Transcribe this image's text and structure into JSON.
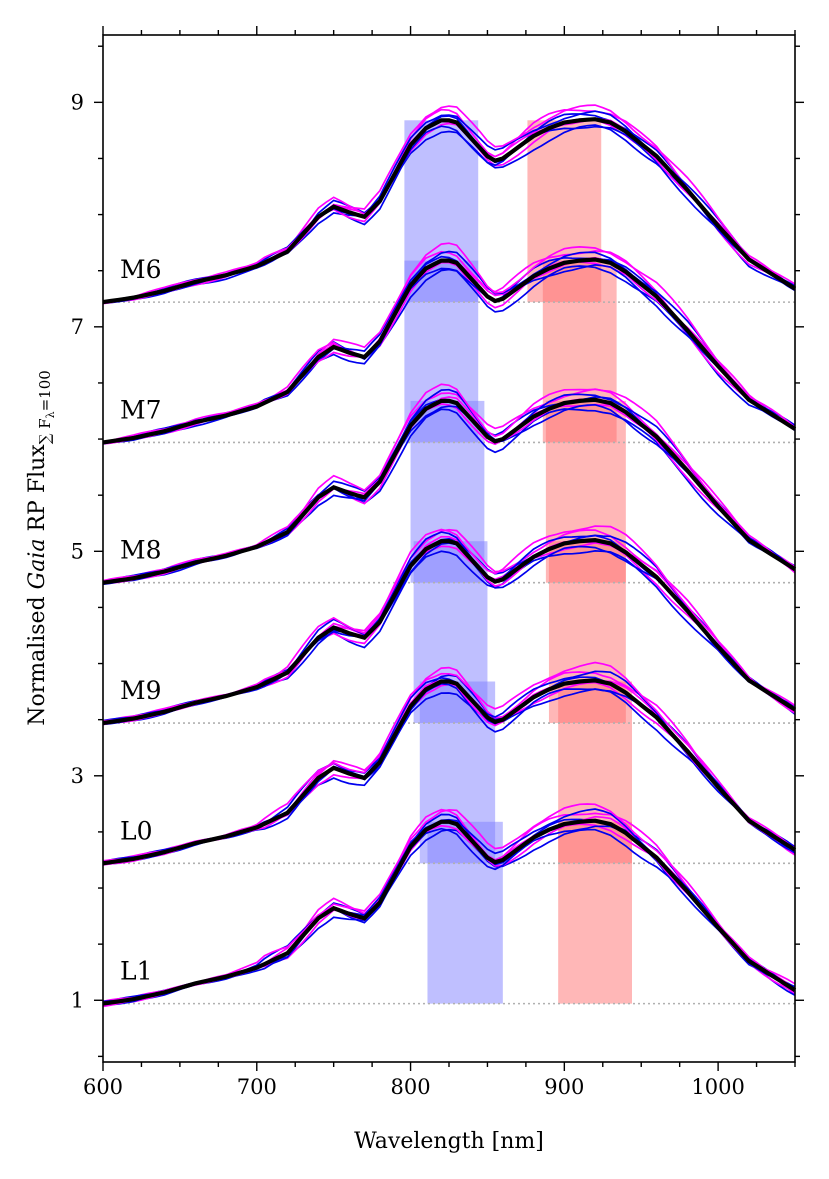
{
  "chart_data": {
    "type": "line",
    "xlabel": "Wavelength [nm]",
    "ylabel": "Normalised Gaia RP Flux",
    "ylabel_parts": {
      "pre": "Normalised ",
      "italic": "Gaia",
      "post": " RP Flux",
      "sub": "∑ F",
      "subsub": "λ",
      "subtail": "=100"
    },
    "xlim": [
      600,
      1050
    ],
    "ylim": [
      0.45,
      9.6
    ],
    "x_ticks": [
      600,
      700,
      800,
      900,
      1000
    ],
    "x_tick_labels": [
      "600",
      "700",
      "800",
      "900",
      "1000"
    ],
    "y_ticks": [
      1,
      3,
      5,
      7,
      9
    ],
    "y_tick_labels": [
      "1",
      "3",
      "5",
      "7",
      "9"
    ],
    "grid": false,
    "colors": {
      "individual_a": "#0000ee",
      "individual_b": "#ff00ff",
      "median": "#000000",
      "blue_band": "#8080ff",
      "red_band": "#ff7070",
      "baseline": "#b0b0b0"
    },
    "spectral_types": [
      {
        "label": "M6",
        "offset": 7.22,
        "blue_band": [
          796,
          844
        ],
        "red_band": [
          876,
          924
        ]
      },
      {
        "label": "M7",
        "offset": 5.97,
        "blue_band": [
          796,
          844
        ],
        "red_band": [
          886,
          934
        ]
      },
      {
        "label": "M8",
        "offset": 4.72,
        "blue_band": [
          800,
          848
        ],
        "red_band": [
          888,
          940
        ]
      },
      {
        "label": "M9",
        "offset": 3.47,
        "blue_band": [
          802,
          850
        ],
        "red_band": [
          890,
          940
        ]
      },
      {
        "label": "L0",
        "offset": 2.22,
        "blue_band": [
          806,
          855
        ],
        "red_band": [
          896,
          944
        ]
      },
      {
        "label": "L1",
        "offset": 0.97,
        "blue_band": [
          811,
          860
        ],
        "red_band": [
          896,
          944
        ]
      }
    ],
    "template": {
      "x": [
        600,
        620,
        640,
        660,
        680,
        700,
        720,
        740,
        750,
        760,
        770,
        780,
        790,
        800,
        810,
        820,
        825,
        830,
        840,
        850,
        855,
        860,
        870,
        880,
        890,
        900,
        910,
        920,
        930,
        940,
        960,
        980,
        1000,
        1020,
        1050
      ],
      "y": [
        0.0,
        0.04,
        0.1,
        0.18,
        0.24,
        0.32,
        0.45,
        0.76,
        0.85,
        0.8,
        0.76,
        0.9,
        1.15,
        1.4,
        1.55,
        1.62,
        1.62,
        1.6,
        1.45,
        1.3,
        1.26,
        1.28,
        1.38,
        1.48,
        1.55,
        1.6,
        1.62,
        1.63,
        1.6,
        1.52,
        1.3,
        1.0,
        0.68,
        0.38,
        0.12
      ]
    }
  }
}
